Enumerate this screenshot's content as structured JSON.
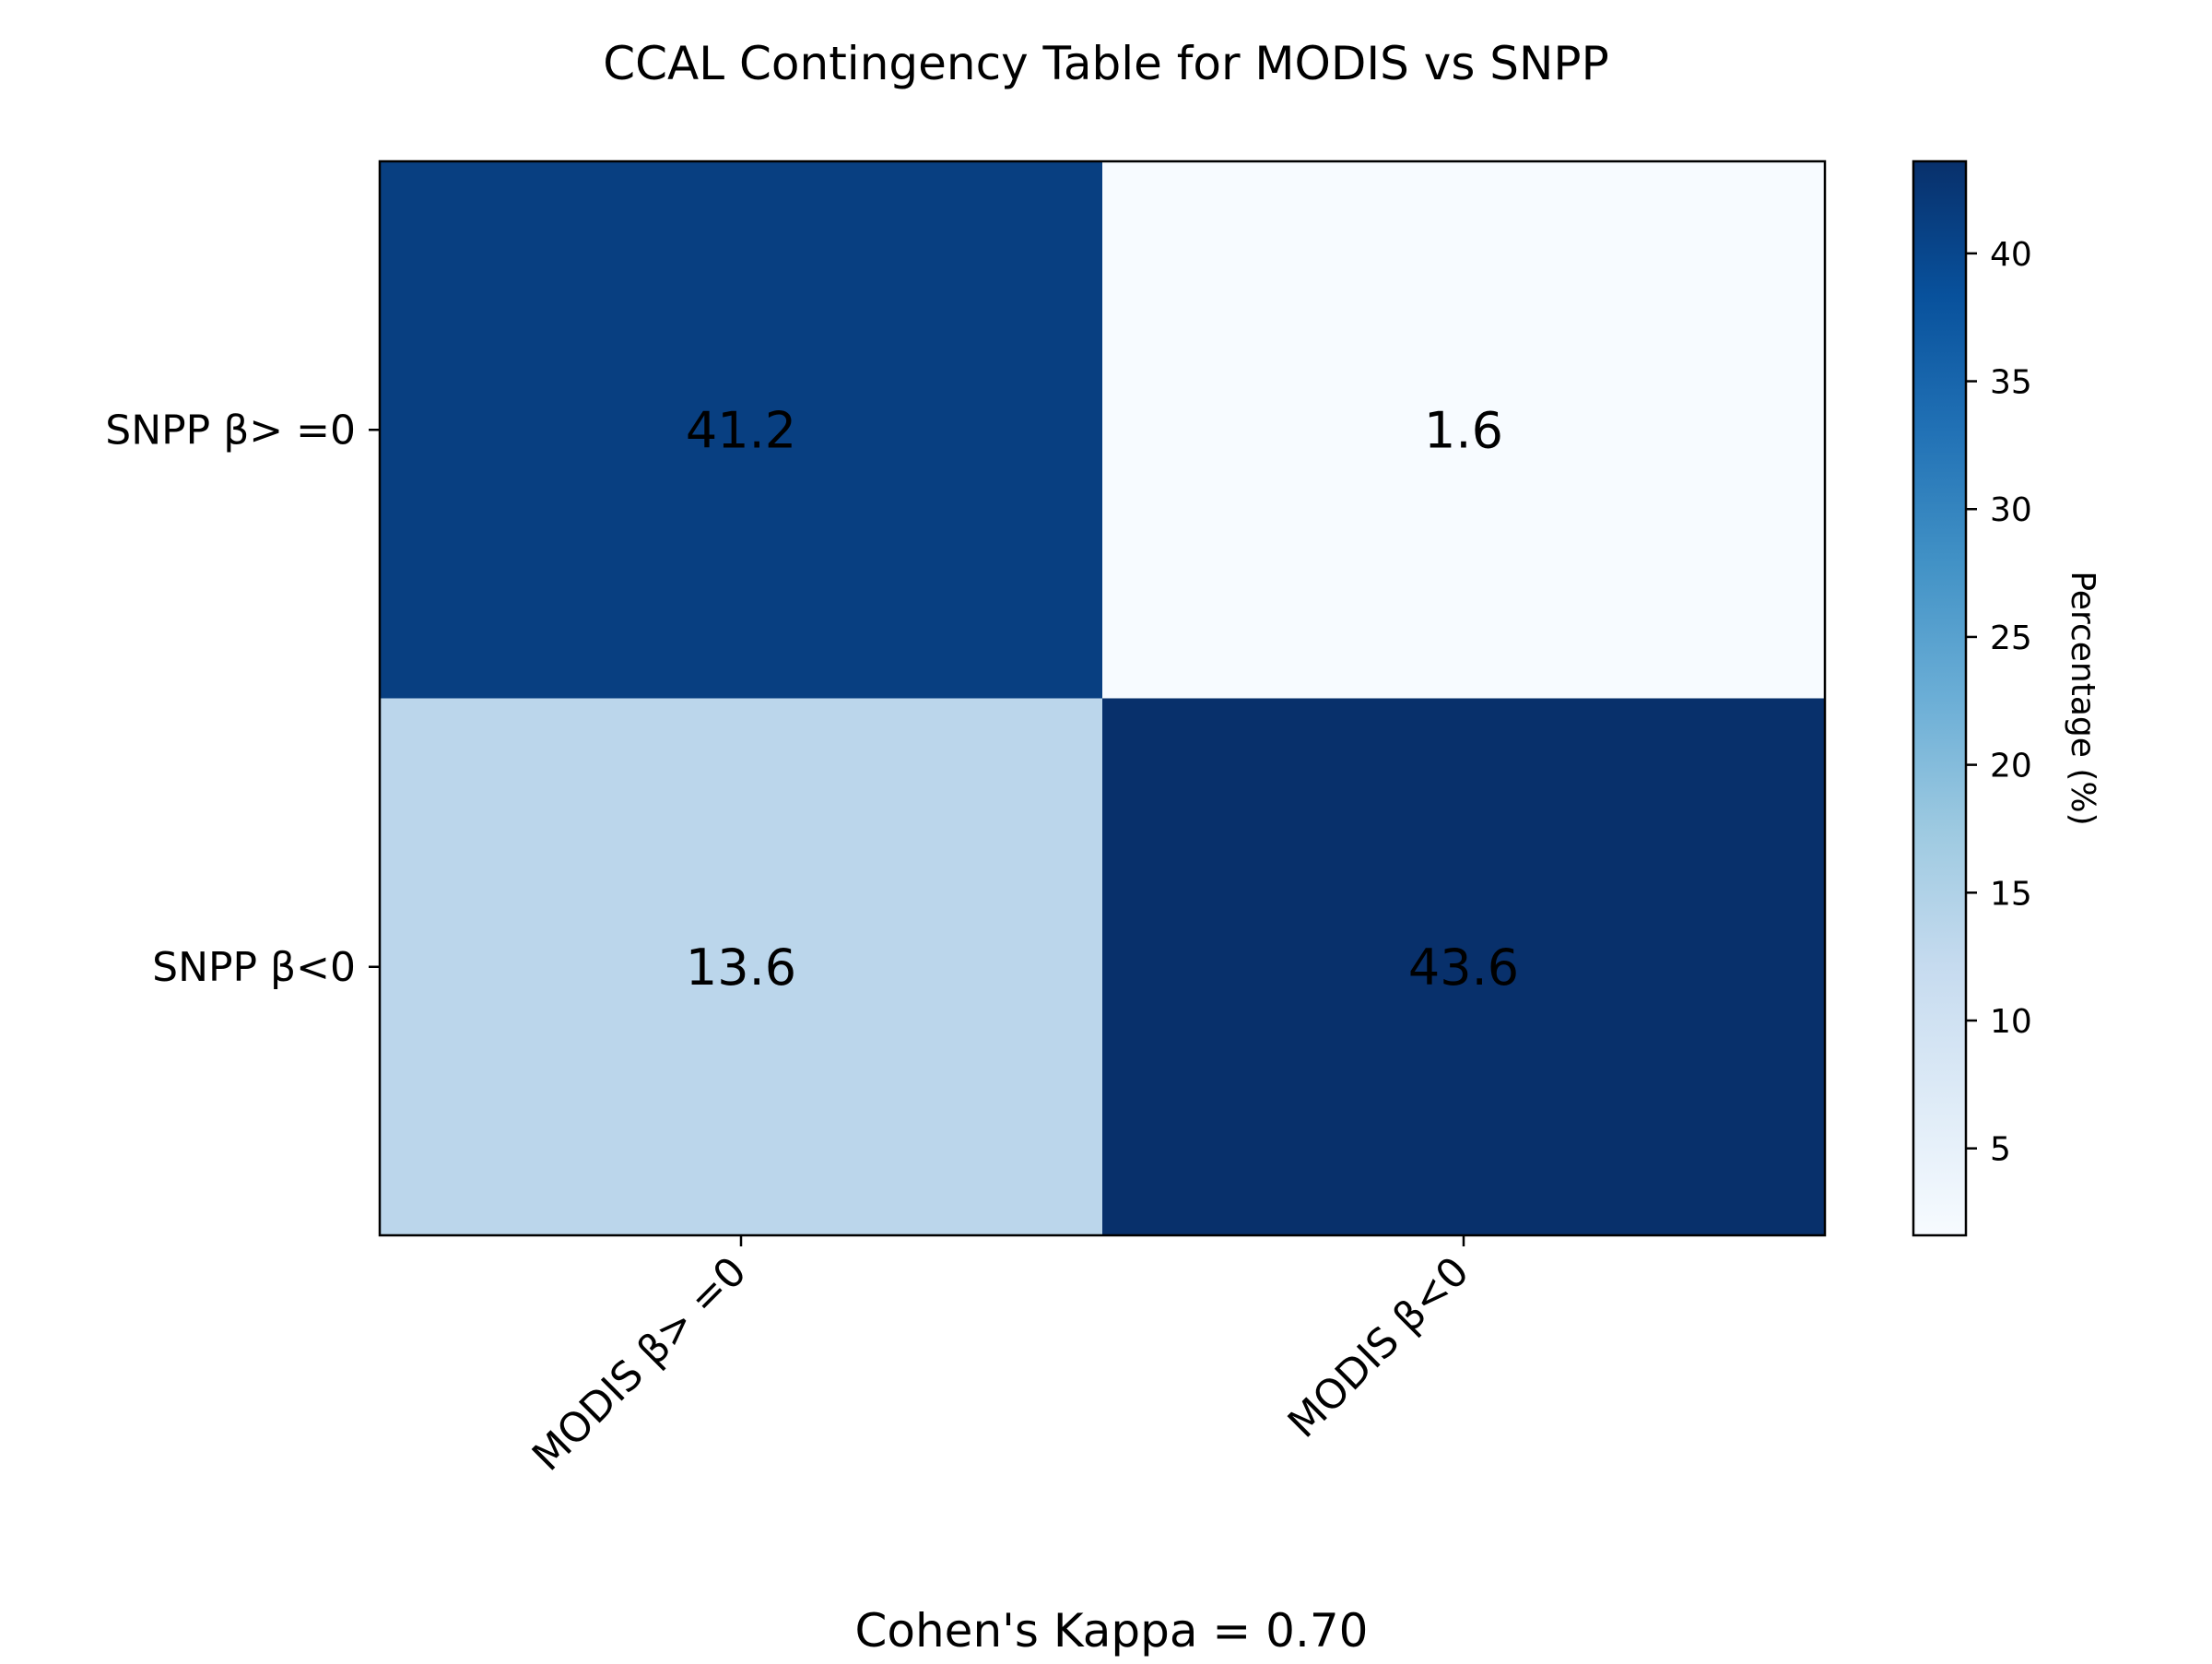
{
  "chart_data": {
    "type": "heatmap",
    "title": "CCAL Contingency Table for MODIS vs SNPP",
    "columns": [
      "MODIS β> =0",
      "MODIS β<0"
    ],
    "rows": [
      "SNPP β> =0",
      "SNPP β<0"
    ],
    "values": [
      [
        41.2,
        1.6
      ],
      [
        13.6,
        43.6
      ]
    ],
    "value_labels": [
      [
        "41.2",
        "1.6"
      ],
      [
        "13.6",
        "43.6"
      ]
    ],
    "colormap": "Blues",
    "colorbar": {
      "label": "Percentage (%)",
      "range": [
        1.6,
        43.6
      ],
      "ticks": [
        5,
        10,
        15,
        20,
        25,
        30,
        35,
        40
      ],
      "tick_labels": [
        "5",
        "10",
        "15",
        "20",
        "25",
        "30",
        "35",
        "40"
      ]
    },
    "annotation": {
      "text": "Cohen's Kappa = 0.70",
      "color": "#0000ee"
    }
  }
}
